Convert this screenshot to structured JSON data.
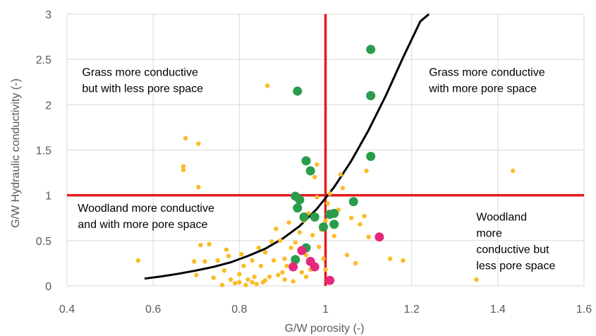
{
  "chart_data": {
    "type": "scatter",
    "xlabel": "G/W porosity (-)",
    "ylabel": "G/W Hydraulic conductivity (-)",
    "xlim": [
      0.4,
      1.6
    ],
    "ylim": [
      0,
      3
    ],
    "xticks": [
      "0.4",
      "0.6",
      "0.8",
      "1",
      "1.2",
      "1.4",
      "1.6"
    ],
    "yticks": [
      "0",
      "0.5",
      "1",
      "1.5",
      "2",
      "2.5",
      "3"
    ],
    "grid": true,
    "legend": "none",
    "annotations": [
      {
        "lines": [
          "Grass more conductive",
          "but with less pore space"
        ],
        "x": 0.435,
        "y": 2.32,
        "anchor": "start"
      },
      {
        "lines": [
          "Grass more conductive",
          "with more pore space"
        ],
        "x": 1.24,
        "y": 2.32,
        "anchor": "start"
      },
      {
        "lines": [
          "Woodland more conductive",
          "and with more pore space"
        ],
        "x": 0.425,
        "y": 0.82,
        "anchor": "start"
      },
      {
        "lines": [
          "Woodland",
          "more",
          "conductive but",
          "less pore space"
        ],
        "x": 1.35,
        "y": 0.72,
        "anchor": "start"
      }
    ],
    "reference_lines": {
      "color": "#e31a1c",
      "vertical_x": 1.0,
      "horizontal_y": 1.0
    },
    "curve": {
      "color": "#000000",
      "x": [
        0.58,
        0.62,
        0.66,
        0.7,
        0.74,
        0.78,
        0.82,
        0.86,
        0.9,
        0.94,
        0.98,
        1.0,
        1.02,
        1.06,
        1.1,
        1.14,
        1.18,
        1.22,
        1.24
      ],
      "y": [
        0.08,
        0.105,
        0.135,
        0.17,
        0.21,
        0.26,
        0.33,
        0.41,
        0.52,
        0.66,
        0.85,
        0.97,
        1.09,
        1.38,
        1.72,
        2.1,
        2.52,
        2.92,
        3.0
      ]
    },
    "series": [
      {
        "color": "#fbbc28",
        "size": "small",
        "points": [
          [
            0.565,
            0.28
          ],
          [
            0.67,
            1.32
          ],
          [
            0.67,
            1.28
          ],
          [
            0.675,
            1.63
          ],
          [
            0.705,
            1.57
          ],
          [
            0.705,
            1.09
          ],
          [
            0.695,
            0.27
          ],
          [
            0.7,
            0.12
          ],
          [
            0.71,
            0.45
          ],
          [
            0.72,
            0.27
          ],
          [
            0.73,
            0.46
          ],
          [
            0.74,
            0.09
          ],
          [
            0.75,
            0.28
          ],
          [
            0.76,
            0.01
          ],
          [
            0.765,
            0.17
          ],
          [
            0.77,
            0.4
          ],
          [
            0.775,
            0.33
          ],
          [
            0.78,
            0.07
          ],
          [
            0.79,
            0.03
          ],
          [
            0.8,
            0.13
          ],
          [
            0.805,
            0.35
          ],
          [
            0.81,
            0.22
          ],
          [
            0.815,
            0.01
          ],
          [
            0.82,
            0.07
          ],
          [
            0.83,
            0.28
          ],
          [
            0.835,
            0.1
          ],
          [
            0.84,
            0.02
          ],
          [
            0.845,
            0.42
          ],
          [
            0.85,
            0.22
          ],
          [
            0.855,
            0.04
          ],
          [
            0.86,
            0.37
          ],
          [
            0.865,
            2.21
          ],
          [
            0.87,
            0.1
          ],
          [
            0.875,
            0.49
          ],
          [
            0.88,
            0.28
          ],
          [
            0.885,
            0.63
          ],
          [
            0.89,
            0.12
          ],
          [
            0.895,
            0.5
          ],
          [
            0.9,
            0.15
          ],
          [
            0.905,
            0.3
          ],
          [
            0.91,
            0.22
          ],
          [
            0.915,
            0.7
          ],
          [
            0.92,
            0.42
          ],
          [
            0.925,
            0.05
          ],
          [
            0.93,
            0.48
          ],
          [
            0.935,
            0.85
          ],
          [
            0.94,
            0.59
          ],
          [
            0.945,
            0.15
          ],
          [
            0.95,
            0.72
          ],
          [
            0.955,
            0.34
          ],
          [
            0.96,
            0.8
          ],
          [
            0.965,
            0.18
          ],
          [
            0.97,
            0.56
          ],
          [
            0.975,
            1.2
          ],
          [
            0.98,
            1.34
          ],
          [
            0.985,
            0.43
          ],
          [
            0.99,
            0.62
          ],
          [
            0.995,
            0.3
          ],
          [
            1.0,
            0.72
          ],
          [
            1.005,
            0.91
          ],
          [
            1.01,
            1.02
          ],
          [
            1.02,
            0.55
          ],
          [
            1.03,
            0.84
          ],
          [
            1.035,
            1.23
          ],
          [
            1.04,
            1.08
          ],
          [
            1.05,
            0.34
          ],
          [
            1.06,
            0.75
          ],
          [
            1.07,
            0.25
          ],
          [
            1.08,
            0.68
          ],
          [
            1.09,
            0.77
          ],
          [
            1.095,
            1.27
          ],
          [
            1.1,
            0.54
          ],
          [
            1.15,
            0.3
          ],
          [
            1.18,
            0.28
          ],
          [
            1.35,
            0.07
          ],
          [
            1.435,
            1.27
          ],
          [
            0.905,
            0.07
          ],
          [
            0.955,
            0.1
          ],
          [
            0.83,
            0.04
          ],
          [
            0.86,
            0.06
          ],
          [
            0.8,
            0.04
          ],
          [
            1.0,
            0.18
          ],
          [
            0.98,
            0.98
          ]
        ]
      },
      {
        "color": "#2a9d4b",
        "size": "large",
        "points": [
          [
            1.105,
            2.61
          ],
          [
            0.935,
            2.15
          ],
          [
            1.105,
            2.1
          ],
          [
            1.105,
            1.43
          ],
          [
            0.955,
            1.38
          ],
          [
            0.965,
            1.27
          ],
          [
            0.93,
            0.99
          ],
          [
            0.94,
            0.95
          ],
          [
            0.935,
            0.86
          ],
          [
            0.95,
            0.76
          ],
          [
            0.975,
            0.76
          ],
          [
            0.995,
            0.65
          ],
          [
            1.01,
            0.79
          ],
          [
            1.02,
            0.8
          ],
          [
            1.02,
            0.68
          ],
          [
            1.065,
            0.93
          ],
          [
            0.955,
            0.42
          ],
          [
            0.93,
            0.29
          ]
        ]
      },
      {
        "color": "#e6277e",
        "size": "large",
        "points": [
          [
            1.125,
            0.54
          ],
          [
            0.945,
            0.39
          ],
          [
            0.965,
            0.27
          ],
          [
            0.975,
            0.21
          ],
          [
            0.925,
            0.21
          ],
          [
            1.01,
            0.06
          ]
        ]
      }
    ]
  }
}
